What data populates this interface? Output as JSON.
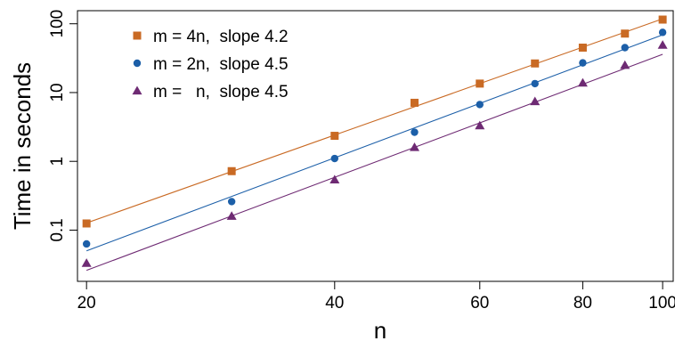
{
  "chart_data": {
    "type": "scatter",
    "title": "",
    "xlabel": "n",
    "ylabel": "Time in seconds",
    "x_scale": "log",
    "y_scale": "log",
    "xlim": [
      19.5,
      103
    ],
    "ylim": [
      0.018,
      155
    ],
    "x_ticks": [
      20,
      40,
      60,
      80,
      100
    ],
    "x_tick_labels": [
      "20",
      "40",
      "60",
      "80",
      "100"
    ],
    "y_ticks": [
      0.1,
      1,
      10,
      100
    ],
    "y_tick_labels": [
      "0.1",
      "1",
      "10",
      "100"
    ],
    "grid": false,
    "legend_position": "top-left",
    "series": [
      {
        "name": "m = 4n,  slope 4.2",
        "color": "#C96A24",
        "marker": "square",
        "x": [
          20,
          30,
          40,
          50,
          60,
          70,
          80,
          90,
          100
        ],
        "y": [
          0.125,
          0.72,
          2.35,
          7.1,
          13.5,
          26.5,
          45,
          72,
          115
        ],
        "fit": [
          [
            20,
            0.127
          ],
          [
            100,
            118
          ]
        ]
      },
      {
        "name": "m = 2n,  slope 4.5",
        "color": "#1C5FA8",
        "marker": "circle",
        "x": [
          20,
          30,
          40,
          50,
          60,
          70,
          80,
          90,
          100
        ],
        "y": [
          0.063,
          0.26,
          1.1,
          2.65,
          6.7,
          13.5,
          27,
          45,
          75
        ],
        "fit": [
          [
            20,
            0.05
          ],
          [
            100,
            69
          ]
        ]
      },
      {
        "name": "m =   n,  slope 4.5",
        "color": "#6E2A73",
        "marker": "triangle",
        "x": [
          20,
          30,
          40,
          50,
          60,
          70,
          80,
          90,
          100
        ],
        "y": [
          0.033,
          0.16,
          0.54,
          1.6,
          3.3,
          7.4,
          13.8,
          25,
          49
        ],
        "fit": [
          [
            20,
            0.026
          ],
          [
            100,
            36
          ]
        ]
      }
    ]
  }
}
